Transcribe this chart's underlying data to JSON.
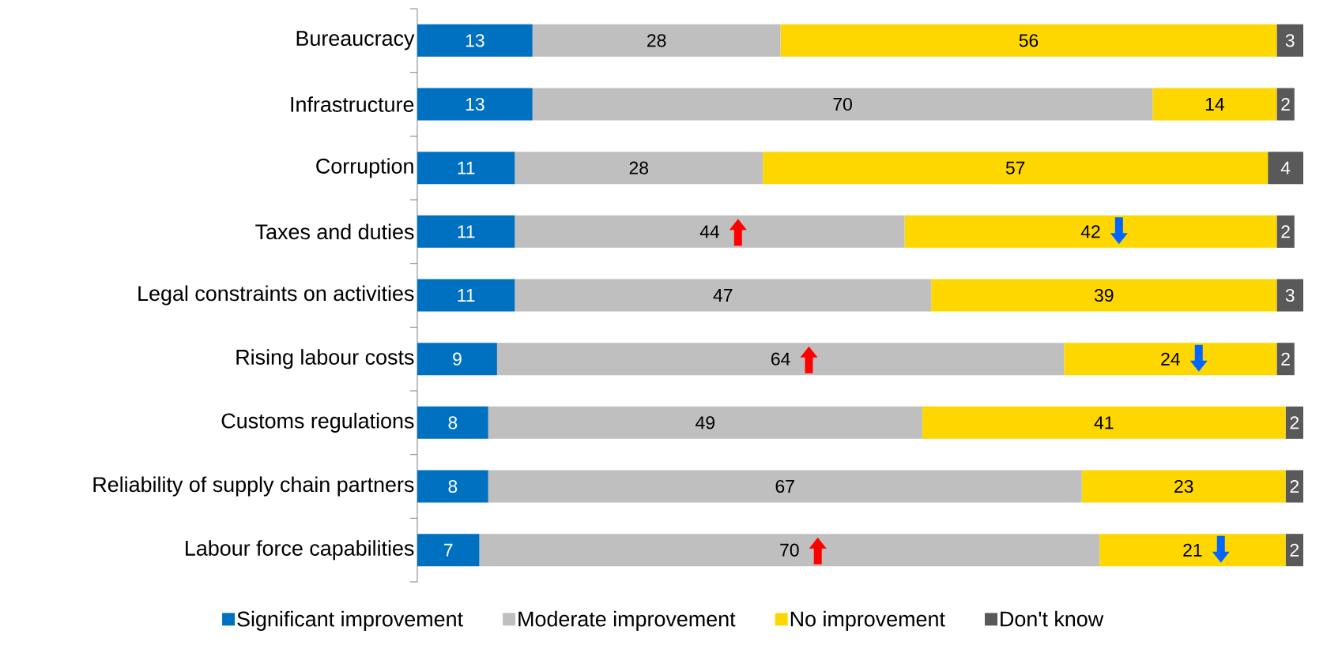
{
  "chart_data": {
    "type": "bar",
    "orientation": "horizontal",
    "stacked": true,
    "data_labels": true,
    "legend": "bottom",
    "tick_labels": "y",
    "categories": [
      "Bureaucracy",
      "Infrastructure",
      "Corruption",
      "Taxes and duties",
      "Legal constraints on activities",
      "Rising labour costs",
      "Customs regulations",
      "Reliability of supply chain partners",
      "Labour force capabilities"
    ],
    "series": [
      {
        "name": "Significant improvement",
        "color": "#0070c0",
        "values": [
          13,
          13,
          11,
          11,
          11,
          9,
          8,
          8,
          7
        ]
      },
      {
        "name": "Moderate improvement",
        "color": "#bfbfbf",
        "values": [
          28,
          70,
          28,
          44,
          47,
          64,
          49,
          67,
          70
        ]
      },
      {
        "name": "No improvement",
        "color": "#ffd700",
        "values": [
          56,
          14,
          57,
          42,
          39,
          24,
          41,
          23,
          21
        ]
      },
      {
        "name": "Don't know",
        "color": "#595959",
        "values": [
          3,
          2,
          4,
          2,
          3,
          2,
          2,
          2,
          2
        ]
      }
    ]
  }
}
